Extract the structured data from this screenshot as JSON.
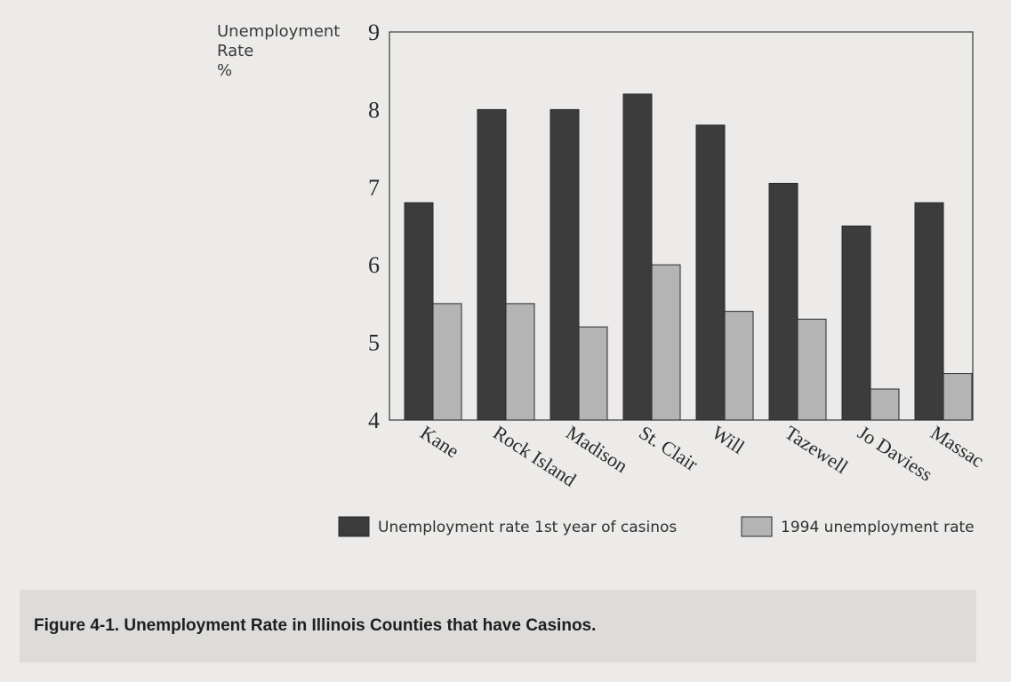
{
  "caption": "Figure 4-1.  Unemployment Rate in Illinois Counties that have Casinos.",
  "chart_data": {
    "type": "bar",
    "ylabel": [
      "Unemployment",
      "Rate",
      "%"
    ],
    "ylim": [
      4,
      9
    ],
    "yticks": [
      4,
      5,
      6,
      7,
      8,
      9
    ],
    "categories": [
      "Kane",
      "Rock Island",
      "Madison",
      "St. Clair",
      "Will",
      "Tazewell",
      "Jo Daviess",
      "Massac"
    ],
    "series": [
      {
        "name": "Unemployment rate 1st year of casinos",
        "color": "#3c3c3c",
        "values": [
          6.8,
          8.0,
          8.0,
          8.2,
          7.8,
          7.05,
          6.5,
          6.8
        ]
      },
      {
        "name": "1994 unemployment rate",
        "color": "#b4b4b4",
        "values": [
          5.5,
          5.5,
          5.2,
          6.0,
          5.4,
          5.3,
          4.4,
          4.6
        ]
      }
    ],
    "grid": false,
    "legend_position": "bottom-right"
  }
}
